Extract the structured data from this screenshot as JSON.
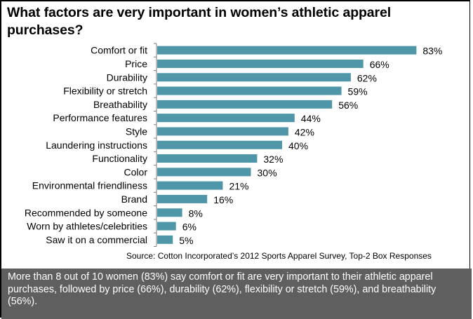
{
  "colors": {
    "bar": "#4f97a8",
    "summary_bg": "#5f5f5f",
    "axis": "#7f7f7f"
  },
  "chart_data": {
    "type": "bar",
    "orientation": "horizontal",
    "title": "What factors are very important in women’s athletic apparel purchases?",
    "categories": [
      "Comfort or fit",
      "Price",
      "Durability",
      "Flexibility or stretch",
      "Breathability",
      "Performance features",
      "Style",
      "Laundering instructions",
      "Functionality",
      "Color",
      "Environmental friendliness",
      "Brand",
      "Recommended by someone",
      "Worn by athletes/celebrities",
      "Saw it on a commercial"
    ],
    "values": [
      83,
      66,
      62,
      59,
      56,
      44,
      42,
      40,
      32,
      30,
      21,
      16,
      8,
      6,
      5
    ],
    "value_labels": [
      "83%",
      "66%",
      "62%",
      "59%",
      "56%",
      "44%",
      "42%",
      "40%",
      "32%",
      "30%",
      "21%",
      "16%",
      "8%",
      "6%",
      "5%"
    ],
    "unit": "%",
    "xlim": [
      0,
      100
    ],
    "grid": false,
    "legend": "none",
    "source": "Source: Cotton Incorporated’s  2012 Sports Apparel Survey, Top-2 Box Responses"
  },
  "summary": "More than 8 out of 10 women (83%) say comfort or fit are very important to their athletic apparel purchases, followed by price (66%), durability (62%), flexibility or stretch (59%), and breathability (56%)."
}
